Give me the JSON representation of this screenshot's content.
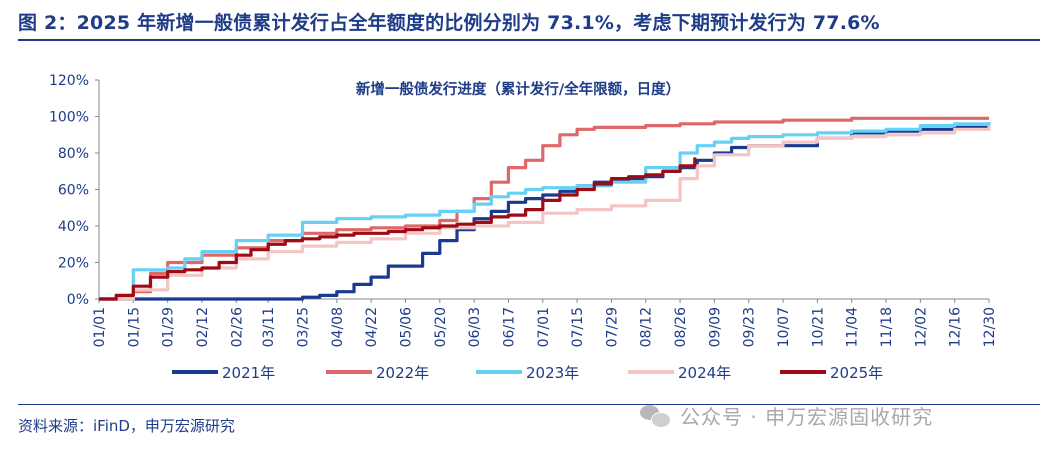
{
  "figure": {
    "title": "图 2：2025 年新增一般债累计发行占全年额度的比例分别为 73.1%，考虑下期预计发行为 77.6%",
    "source": "资料来源：iFinD，申万宏源研究",
    "watermark": "公众号 · 申万宏源固收研究",
    "watermark_icon": "wechat-icon"
  },
  "chart_data": {
    "type": "line",
    "title": "新增一般债发行进度（累计发行/全年限额，日度）",
    "xlabel": "",
    "ylabel": "",
    "x_ticks": [
      "01/01",
      "01/15",
      "01/29",
      "02/12",
      "02/26",
      "03/11",
      "03/25",
      "04/08",
      "04/22",
      "05/06",
      "05/20",
      "06/03",
      "06/17",
      "07/01",
      "07/15",
      "07/29",
      "08/12",
      "08/26",
      "09/09",
      "09/23",
      "10/07",
      "10/21",
      "11/04",
      "11/18",
      "12/02",
      "12/16",
      "12/30"
    ],
    "y_ticks": [
      "0%",
      "20%",
      "40%",
      "60%",
      "80%",
      "100%",
      "120%"
    ],
    "ylim": [
      0,
      120
    ],
    "y_unit": "%",
    "grid": false,
    "legend_position": "bottom",
    "series": [
      {
        "name": "2021年",
        "color": "#1a3a8f",
        "x": [
          "01/01",
          "03/18",
          "03/25",
          "04/01",
          "04/08",
          "04/15",
          "04/22",
          "04/29",
          "05/06",
          "05/13",
          "05/20",
          "05/27",
          "06/03",
          "06/10",
          "06/17",
          "06/24",
          "07/01",
          "07/08",
          "07/15",
          "07/22",
          "07/29",
          "08/05",
          "08/12",
          "08/19",
          "08/26",
          "09/02",
          "09/09",
          "09/16",
          "09/23",
          "10/07",
          "10/21",
          "11/04",
          "11/18",
          "12/02",
          "12/16",
          "12/30"
        ],
        "values": [
          0,
          0,
          1,
          2,
          4,
          8,
          12,
          18,
          18,
          25,
          32,
          38,
          44,
          48,
          53,
          55,
          57,
          59,
          62,
          64,
          65,
          66,
          67,
          70,
          72,
          76,
          80,
          83,
          84,
          84,
          88,
          91,
          92,
          93,
          94,
          95
        ]
      },
      {
        "name": "2022年",
        "color": "#e06767",
        "x": [
          "01/01",
          "01/15",
          "01/22",
          "01/29",
          "02/12",
          "02/26",
          "03/11",
          "03/25",
          "04/08",
          "04/22",
          "05/06",
          "05/20",
          "05/27",
          "06/03",
          "06/10",
          "06/17",
          "06/24",
          "07/01",
          "07/08",
          "07/15",
          "07/22",
          "07/29",
          "08/12",
          "08/26",
          "09/09",
          "09/23",
          "10/07",
          "10/21",
          "11/04",
          "11/18",
          "12/02",
          "12/16",
          "12/30"
        ],
        "values": [
          0,
          4,
          14,
          20,
          24,
          28,
          32,
          36,
          38,
          39,
          40,
          43,
          48,
          55,
          64,
          72,
          76,
          84,
          90,
          93,
          94,
          94,
          95,
          96,
          97,
          97,
          98,
          98,
          99,
          99,
          99,
          99,
          99
        ]
      },
      {
        "name": "2023年",
        "color": "#66d0f5",
        "x": [
          "01/01",
          "01/10",
          "01/15",
          "01/29",
          "02/05",
          "02/12",
          "02/26",
          "03/11",
          "03/25",
          "04/08",
          "04/22",
          "05/06",
          "05/20",
          "06/03",
          "06/10",
          "06/17",
          "06/24",
          "07/01",
          "07/15",
          "07/29",
          "08/12",
          "08/26",
          "09/02",
          "09/09",
          "09/16",
          "09/23",
          "10/07",
          "10/21",
          "11/04",
          "11/18",
          "12/02",
          "12/16",
          "12/30"
        ],
        "values": [
          0,
          0,
          16,
          17,
          22,
          26,
          32,
          35,
          42,
          44,
          45,
          46,
          48,
          52,
          56,
          58,
          60,
          61,
          62,
          64,
          72,
          80,
          84,
          86,
          88,
          89,
          90,
          91,
          92,
          93,
          95,
          96,
          97
        ]
      },
      {
        "name": "2024年",
        "color": "#f5c5c5",
        "x": [
          "01/01",
          "01/15",
          "01/29",
          "02/12",
          "02/26",
          "03/11",
          "03/25",
          "04/08",
          "04/22",
          "05/06",
          "05/20",
          "06/03",
          "06/17",
          "07/01",
          "07/15",
          "07/29",
          "08/12",
          "08/26",
          "09/02",
          "09/09",
          "09/23",
          "10/07",
          "10/21",
          "11/04",
          "11/18",
          "12/02",
          "12/16",
          "12/30"
        ],
        "values": [
          0,
          5,
          13,
          17,
          22,
          26,
          29,
          31,
          33,
          36,
          39,
          40,
          42,
          47,
          49,
          51,
          54,
          66,
          73,
          79,
          84,
          86,
          88,
          89,
          90,
          91,
          93,
          95
        ]
      },
      {
        "name": "2025年",
        "color": "#9e0b14",
        "x": [
          "01/01",
          "01/08",
          "01/15",
          "01/22",
          "01/29",
          "02/05",
          "02/12",
          "02/19",
          "02/26",
          "03/04",
          "03/11",
          "03/18",
          "03/25",
          "04/01",
          "04/08",
          "04/15",
          "04/22",
          "04/29",
          "05/06",
          "05/13",
          "05/20",
          "05/27",
          "06/03",
          "06/10",
          "06/17",
          "06/24",
          "07/01",
          "07/08",
          "07/15",
          "07/22",
          "07/29",
          "08/05",
          "08/12",
          "08/19",
          "08/26",
          "09/01"
        ],
        "values": [
          0,
          2,
          7,
          12,
          15,
          16,
          17,
          20,
          24,
          27,
          30,
          32,
          33,
          34,
          35,
          36,
          36,
          37,
          38,
          39,
          40,
          41,
          42,
          45,
          46,
          49,
          54,
          57,
          60,
          63,
          66,
          67,
          68,
          70,
          73,
          77.6
        ]
      }
    ]
  }
}
